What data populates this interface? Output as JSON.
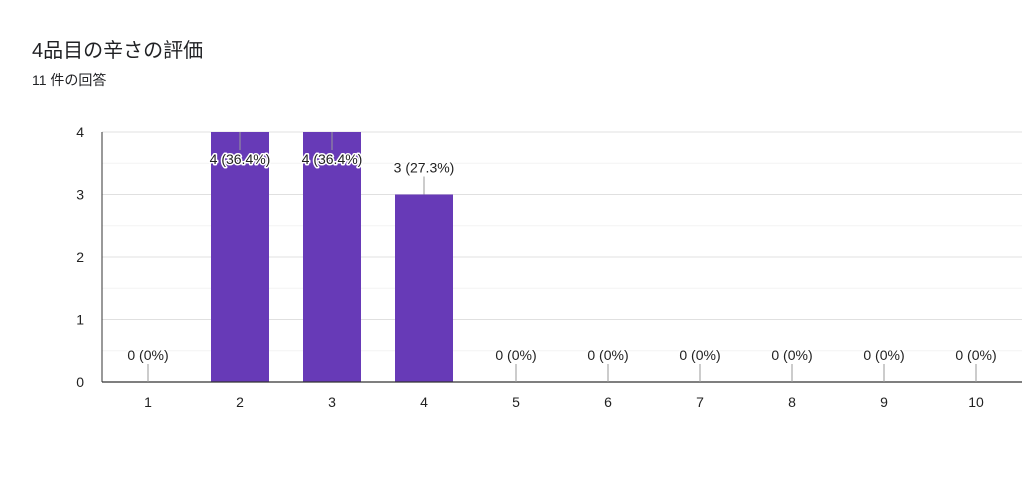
{
  "header": {
    "title": "4品目の辛さの評価",
    "subtitle": "11 件の回答"
  },
  "chart_data": {
    "type": "bar",
    "categories": [
      "1",
      "2",
      "3",
      "4",
      "5",
      "6",
      "7",
      "8",
      "9",
      "10"
    ],
    "values": [
      0,
      4,
      4,
      3,
      0,
      0,
      0,
      0,
      0,
      0
    ],
    "data_labels": [
      "0 (0%)",
      "4 (36.4%)",
      "4 (36.4%)",
      "3 (27.3%)",
      "0 (0%)",
      "0 (0%)",
      "0 (0%)",
      "0 (0%)",
      "0 (0%)",
      "0 (0%)"
    ],
    "y_ticks": [
      "0",
      "1",
      "2",
      "3",
      "4"
    ],
    "ylim": [
      0,
      4
    ],
    "bar_color": "#673ab7",
    "grid": true
  }
}
